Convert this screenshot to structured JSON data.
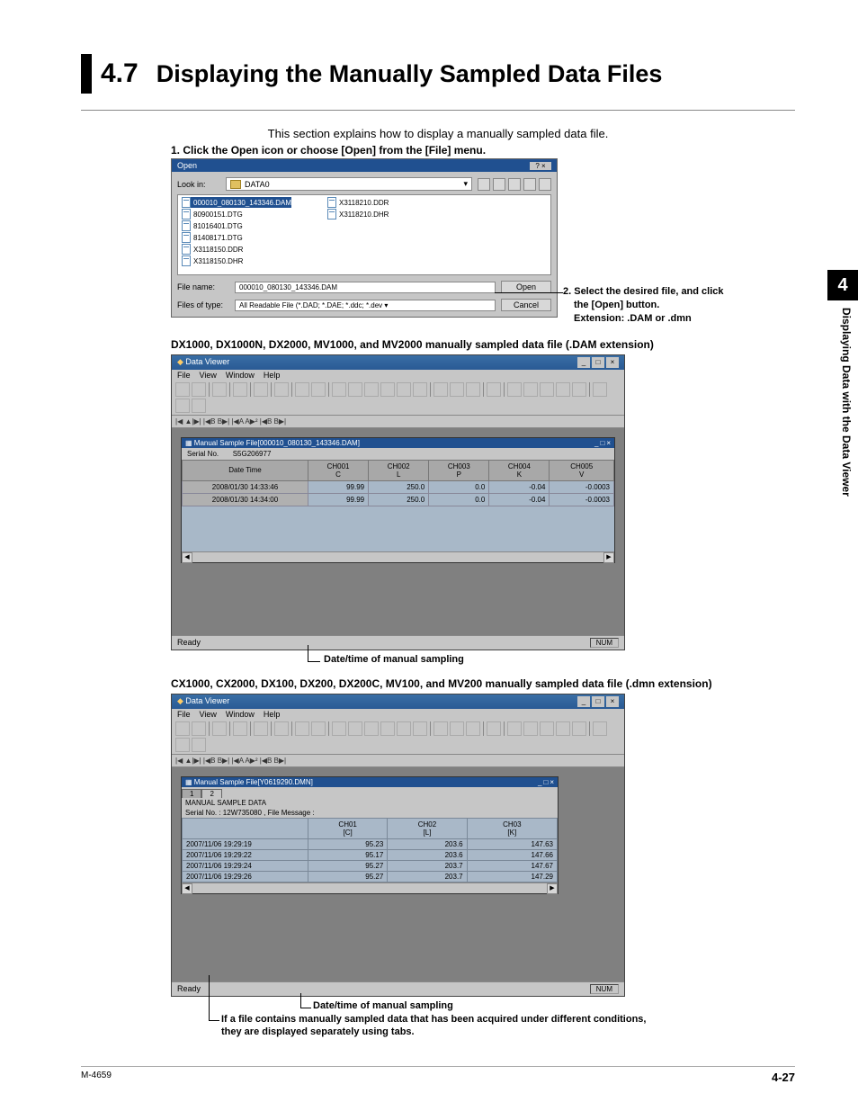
{
  "section": {
    "number": "4.7",
    "title": "Displaying the Manually Sampled Data Files"
  },
  "intro": "This section explains how to display a manually sampled data file.",
  "step1": "1. Click the Open icon or choose [Open] from the [File] menu.",
  "openDialog": {
    "title": "Open",
    "closeIcons": "? ×",
    "lookin_label": "Look in:",
    "lookin_value": "DATA0",
    "filesCol1": [
      "000010_080130_143346.DAM",
      "80900151.DTG",
      "81016401.DTG",
      "81408171.DTG",
      "X3118150.DDR",
      "X3118150.DHR"
    ],
    "filesCol2": [
      "X3118210.DDR",
      "X3118210.DHR"
    ],
    "filename_label": "File name:",
    "filename_value": "000010_080130_143346.DAM",
    "filetype_label": "Files of type:",
    "filetype_value": "All Readable File (*.DAD; *.DAE; *.ddc; *.dev ▾",
    "open_btn": "Open",
    "cancel_btn": "Cancel"
  },
  "callout2": {
    "line1": "2. Select the desired file, and click",
    "line2": "the [Open] button.",
    "line3": "Extension: .DAM or .dmn"
  },
  "caption1": "DX1000, DX1000N, DX2000, MV1000, and MV2000 manually sampled data file (.DAM extension)",
  "dv1": {
    "app_title": "Data Viewer",
    "menu": {
      "file": "File",
      "view": "View",
      "window": "Window",
      "help": "Help"
    },
    "nav": "|◀ ▲|▶| |◀B B▶|   |◀A A▶² |◀B B▶|",
    "inner_title": "Manual Sample File[000010_080130_143346.DAM]",
    "serial_label": "Serial No.",
    "serial_value": "S5G206977",
    "headers": [
      "Date Time",
      "CH001\nC",
      "CH002\nL",
      "CH003\nP",
      "CH004\nK",
      "CH005\nV"
    ],
    "rows": [
      [
        "2008/01/30 14:33:46",
        "99.99",
        "250.0",
        "0.0",
        "-0.04",
        "-0.0003"
      ],
      [
        "2008/01/30 14:34:00",
        "99.99",
        "250.0",
        "0.0",
        "-0.04",
        "-0.0003"
      ]
    ],
    "status_ready": "Ready",
    "status_num": "NUM"
  },
  "annot1": "Date/time of manual sampling",
  "caption2": "CX1000, CX2000, DX100, DX200, DX200C, MV100, and MV200 manually sampled data file (.dmn extension)",
  "dv2": {
    "app_title": "Data Viewer",
    "menu": {
      "file": "File",
      "view": "View",
      "window": "Window",
      "help": "Help"
    },
    "nav": "|◀ ▲|▶| |◀B B▶|   |◀A A▶² |◀B B▶|",
    "inner_title": "Manual Sample File[Y0619290.DMN]",
    "tab1": "1",
    "tab2": "2",
    "ms_label": "MANUAL SAMPLE DATA",
    "serial_line": "Serial No. : 12W735080 , File Message :",
    "headers": [
      "",
      "CH01\n[C]",
      "CH02\n[L]",
      "CH03\n[K]"
    ],
    "rows": [
      [
        "2007/11/06 19:29:19",
        "95.23",
        "203.6",
        "147.63"
      ],
      [
        "2007/11/06 19:29:22",
        "95.17",
        "203.6",
        "147.66"
      ],
      [
        "2007/11/06 19:29:24",
        "95.27",
        "203.7",
        "147.67"
      ],
      [
        "2007/11/06 19:29:26",
        "95.27",
        "203.7",
        "147.29"
      ]
    ],
    "status_ready": "Ready",
    "status_num": "NUM"
  },
  "annot2": "Date/time of manual sampling",
  "tabnote1": "If a file contains manually sampled data that has been acquired under different conditions,",
  "tabnote2": "they are displayed separately using tabs.",
  "side": {
    "chapter": "4",
    "text": "Displaying Data with the Data Viewer"
  },
  "footer": {
    "doc": "M-4659",
    "page": "4-27"
  },
  "colors": {
    "titlebar": "#205090",
    "winbg": "#c6c6c6",
    "mdiarea": "#808080",
    "cellbg": "#a8b8c8",
    "headerbg": "#a8a8a8"
  }
}
